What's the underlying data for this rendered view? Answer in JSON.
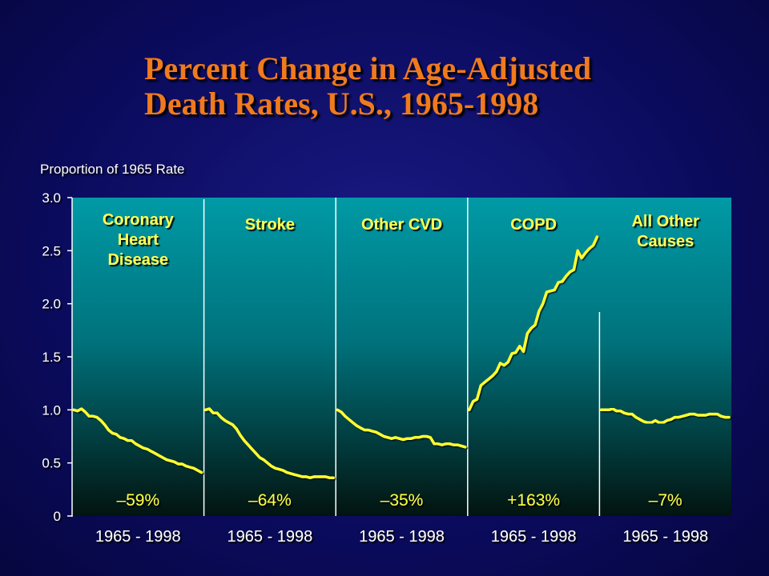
{
  "title_line1": "Percent Change in Age-Adjusted",
  "title_line2": "Death Rates, U.S., 1965-1998",
  "colors": {
    "title": "#f07a1e",
    "series": "#ffff33",
    "panel_top": "#009aa6",
    "panel_bottom": "#021410"
  },
  "chart_data": {
    "type": "line",
    "title": "Percent Change in Age-Adjusted Death Rates, U.S., 1965-1998",
    "ylabel": "Proportion of 1965 Rate",
    "ylim": [
      0,
      3.0
    ],
    "yticks": [
      {
        "value": 0,
        "label": "0"
      },
      {
        "value": 0.5,
        "label": "0.5"
      },
      {
        "value": 1.0,
        "label": "1.0"
      },
      {
        "value": 1.5,
        "label": "1.5"
      },
      {
        "value": 2.0,
        "label": "2.0"
      },
      {
        "value": 2.5,
        "label": "2.5"
      },
      {
        "value": 3.0,
        "label": "3.0"
      }
    ],
    "xrange": [
      1965,
      1998
    ],
    "legend": "none",
    "panels": [
      {
        "name_lines": [
          "Coronary",
          "Heart",
          "Disease"
        ],
        "x_label": "1965 - 1998",
        "change": "–59%",
        "points": [
          [
            1965,
            1.0
          ],
          [
            1966,
            0.99
          ],
          [
            1967,
            1.01
          ],
          [
            1968,
            0.98
          ],
          [
            1969,
            0.94
          ],
          [
            1970,
            0.94
          ],
          [
            1971,
            0.93
          ],
          [
            1972,
            0.9
          ],
          [
            1973,
            0.86
          ],
          [
            1974,
            0.81
          ],
          [
            1975,
            0.78
          ],
          [
            1976,
            0.77
          ],
          [
            1977,
            0.74
          ],
          [
            1978,
            0.73
          ],
          [
            1979,
            0.71
          ],
          [
            1980,
            0.71
          ],
          [
            1981,
            0.68
          ],
          [
            1982,
            0.66
          ],
          [
            1983,
            0.64
          ],
          [
            1984,
            0.63
          ],
          [
            1985,
            0.61
          ],
          [
            1986,
            0.59
          ],
          [
            1987,
            0.57
          ],
          [
            1988,
            0.55
          ],
          [
            1989,
            0.53
          ],
          [
            1990,
            0.52
          ],
          [
            1991,
            0.51
          ],
          [
            1992,
            0.49
          ],
          [
            1993,
            0.49
          ],
          [
            1994,
            0.47
          ],
          [
            1995,
            0.46
          ],
          [
            1996,
            0.45
          ],
          [
            1997,
            0.43
          ],
          [
            1998,
            0.41
          ]
        ]
      },
      {
        "name_lines": [
          "Stroke"
        ],
        "x_label": "1965 - 1998",
        "change": "–64%",
        "points": [
          [
            1965,
            1.0
          ],
          [
            1966,
            1.01
          ],
          [
            1967,
            0.97
          ],
          [
            1968,
            0.97
          ],
          [
            1969,
            0.93
          ],
          [
            1970,
            0.9
          ],
          [
            1971,
            0.88
          ],
          [
            1972,
            0.86
          ],
          [
            1973,
            0.82
          ],
          [
            1974,
            0.76
          ],
          [
            1975,
            0.71
          ],
          [
            1976,
            0.67
          ],
          [
            1977,
            0.63
          ],
          [
            1978,
            0.59
          ],
          [
            1979,
            0.55
          ],
          [
            1980,
            0.53
          ],
          [
            1981,
            0.5
          ],
          [
            1982,
            0.47
          ],
          [
            1983,
            0.45
          ],
          [
            1984,
            0.44
          ],
          [
            1985,
            0.43
          ],
          [
            1986,
            0.41
          ],
          [
            1987,
            0.4
          ],
          [
            1988,
            0.39
          ],
          [
            1989,
            0.38
          ],
          [
            1990,
            0.37
          ],
          [
            1991,
            0.37
          ],
          [
            1992,
            0.36
          ],
          [
            1993,
            0.37
          ],
          [
            1994,
            0.37
          ],
          [
            1995,
            0.37
          ],
          [
            1996,
            0.37
          ],
          [
            1997,
            0.36
          ],
          [
            1998,
            0.36
          ]
        ]
      },
      {
        "name_lines": [
          "Other CVD"
        ],
        "x_label": "1965 - 1998",
        "change": "–35%",
        "points": [
          [
            1965,
            1.0
          ],
          [
            1966,
            0.98
          ],
          [
            1967,
            0.94
          ],
          [
            1968,
            0.91
          ],
          [
            1969,
            0.88
          ],
          [
            1970,
            0.85
          ],
          [
            1971,
            0.83
          ],
          [
            1972,
            0.81
          ],
          [
            1973,
            0.81
          ],
          [
            1974,
            0.8
          ],
          [
            1975,
            0.79
          ],
          [
            1976,
            0.77
          ],
          [
            1977,
            0.75
          ],
          [
            1978,
            0.74
          ],
          [
            1979,
            0.73
          ],
          [
            1980,
            0.74
          ],
          [
            1981,
            0.73
          ],
          [
            1982,
            0.72
          ],
          [
            1983,
            0.73
          ],
          [
            1984,
            0.73
          ],
          [
            1985,
            0.74
          ],
          [
            1986,
            0.74
          ],
          [
            1987,
            0.75
          ],
          [
            1988,
            0.75
          ],
          [
            1989,
            0.74
          ],
          [
            1990,
            0.68
          ],
          [
            1991,
            0.68
          ],
          [
            1992,
            0.67
          ],
          [
            1993,
            0.68
          ],
          [
            1994,
            0.68
          ],
          [
            1995,
            0.67
          ],
          [
            1996,
            0.67
          ],
          [
            1997,
            0.66
          ],
          [
            1998,
            0.65
          ]
        ]
      },
      {
        "name_lines": [
          "COPD"
        ],
        "x_label": "1965 - 1998",
        "change": "+163%",
        "points": [
          [
            1965,
            1.0
          ],
          [
            1966,
            1.08
          ],
          [
            1967,
            1.1
          ],
          [
            1968,
            1.23
          ],
          [
            1969,
            1.26
          ],
          [
            1970,
            1.29
          ],
          [
            1971,
            1.32
          ],
          [
            1972,
            1.36
          ],
          [
            1973,
            1.44
          ],
          [
            1974,
            1.42
          ],
          [
            1975,
            1.45
          ],
          [
            1976,
            1.53
          ],
          [
            1977,
            1.54
          ],
          [
            1978,
            1.6
          ],
          [
            1979,
            1.55
          ],
          [
            1980,
            1.72
          ],
          [
            1981,
            1.77
          ],
          [
            1982,
            1.8
          ],
          [
            1983,
            1.93
          ],
          [
            1984,
            2.0
          ],
          [
            1985,
            2.11
          ],
          [
            1986,
            2.12
          ],
          [
            1987,
            2.13
          ],
          [
            1988,
            2.2
          ],
          [
            1989,
            2.21
          ],
          [
            1990,
            2.26
          ],
          [
            1991,
            2.3
          ],
          [
            1992,
            2.32
          ],
          [
            1993,
            2.5
          ],
          [
            1994,
            2.43
          ],
          [
            1995,
            2.48
          ],
          [
            1996,
            2.52
          ],
          [
            1997,
            2.55
          ],
          [
            1998,
            2.63
          ]
        ]
      },
      {
        "name_lines": [
          "All Other",
          "Causes"
        ],
        "x_label": "1965 - 1998",
        "change": "–7%",
        "points": [
          [
            1965,
            1.0
          ],
          [
            1966,
            1.0
          ],
          [
            1967,
            1.0
          ],
          [
            1968,
            1.01
          ],
          [
            1969,
            0.99
          ],
          [
            1970,
            0.99
          ],
          [
            1971,
            0.97
          ],
          [
            1972,
            0.96
          ],
          [
            1973,
            0.96
          ],
          [
            1974,
            0.93
          ],
          [
            1975,
            0.91
          ],
          [
            1976,
            0.89
          ],
          [
            1977,
            0.88
          ],
          [
            1978,
            0.88
          ],
          [
            1979,
            0.9
          ],
          [
            1980,
            0.88
          ],
          [
            1981,
            0.88
          ],
          [
            1982,
            0.9
          ],
          [
            1983,
            0.91
          ],
          [
            1984,
            0.93
          ],
          [
            1985,
            0.93
          ],
          [
            1986,
            0.94
          ],
          [
            1987,
            0.95
          ],
          [
            1988,
            0.96
          ],
          [
            1989,
            0.96
          ],
          [
            1990,
            0.95
          ],
          [
            1991,
            0.95
          ],
          [
            1992,
            0.95
          ],
          [
            1993,
            0.96
          ],
          [
            1994,
            0.96
          ],
          [
            1995,
            0.96
          ],
          [
            1996,
            0.94
          ],
          [
            1997,
            0.93
          ],
          [
            1998,
            0.93
          ]
        ]
      }
    ]
  }
}
